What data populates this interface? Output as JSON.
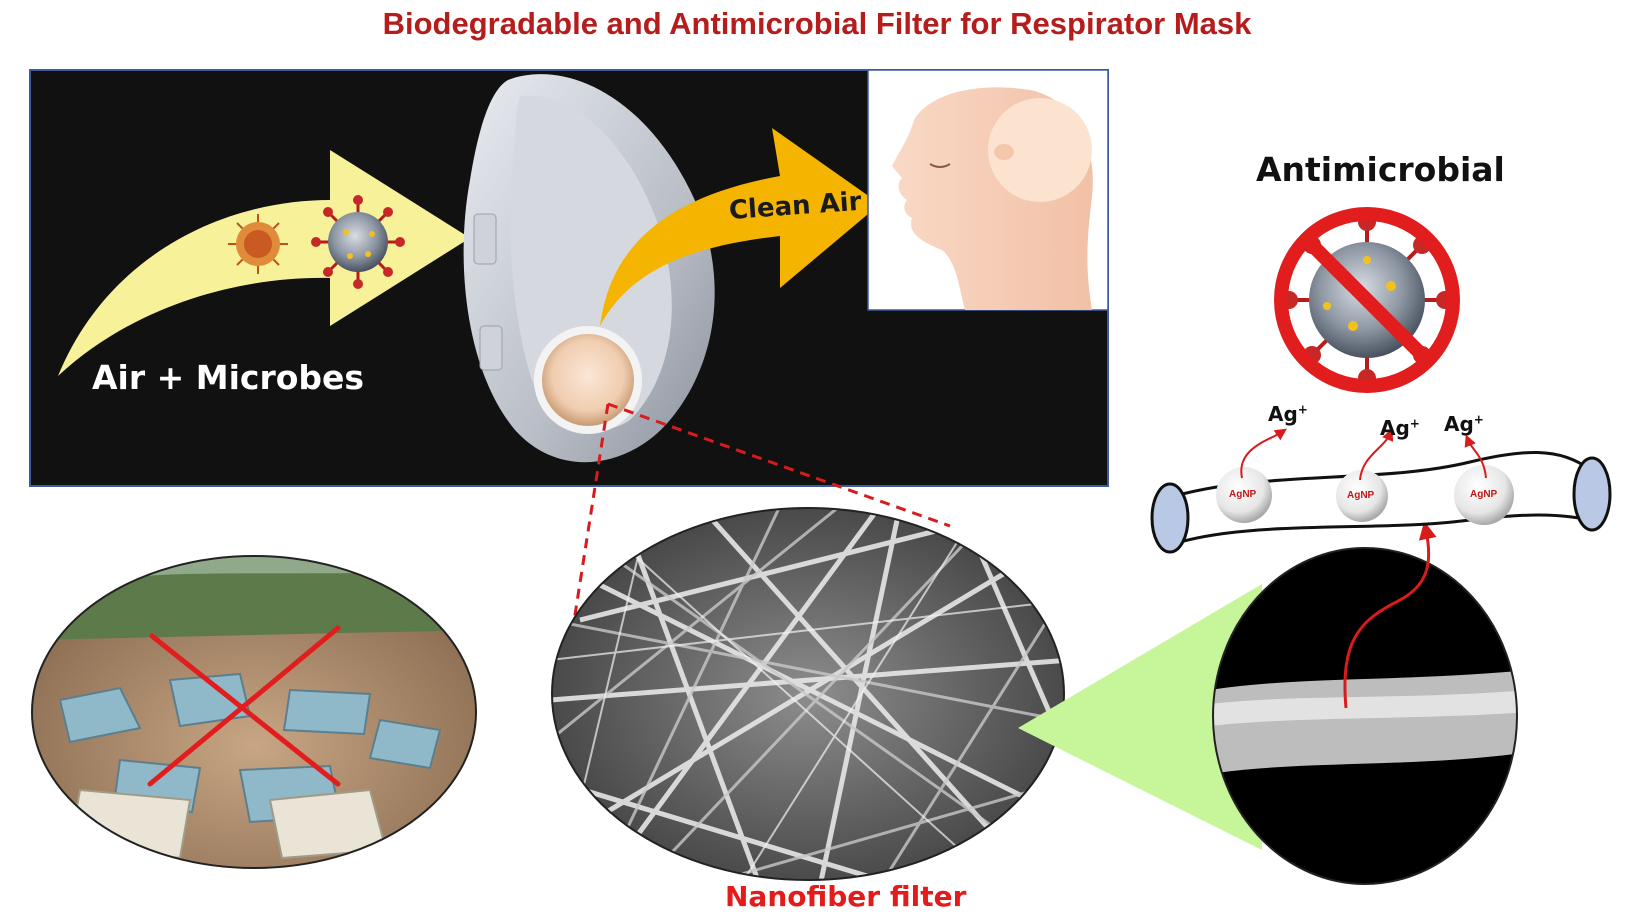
{
  "title": "Biodegradable and Antimicrobial Filter for Respirator Mask",
  "labels": {
    "air_microbes": "Air + Microbes",
    "clean_air": "Clean Air",
    "antimicrobial": "Antimicrobial",
    "nanofiber_filter": "Nanofiber filter",
    "ag_ion": "Ag",
    "ag_ion_charge": "+",
    "agnp": "AgNP"
  },
  "colors": {
    "title": "#b51c1c",
    "yellow_arrow": "#f7f29a",
    "orange_arrow": "#f4b400",
    "dark_panel": "#111111",
    "prohibition": "#e11d1d",
    "zoom_cone": "#c6f59a"
  },
  "icons": [
    "virus-icon",
    "respirator-mask-icon",
    "human-head-icon",
    "prohibition-icon",
    "nanofiber-tube-icon",
    "silver-nanoparticle-icon"
  ]
}
